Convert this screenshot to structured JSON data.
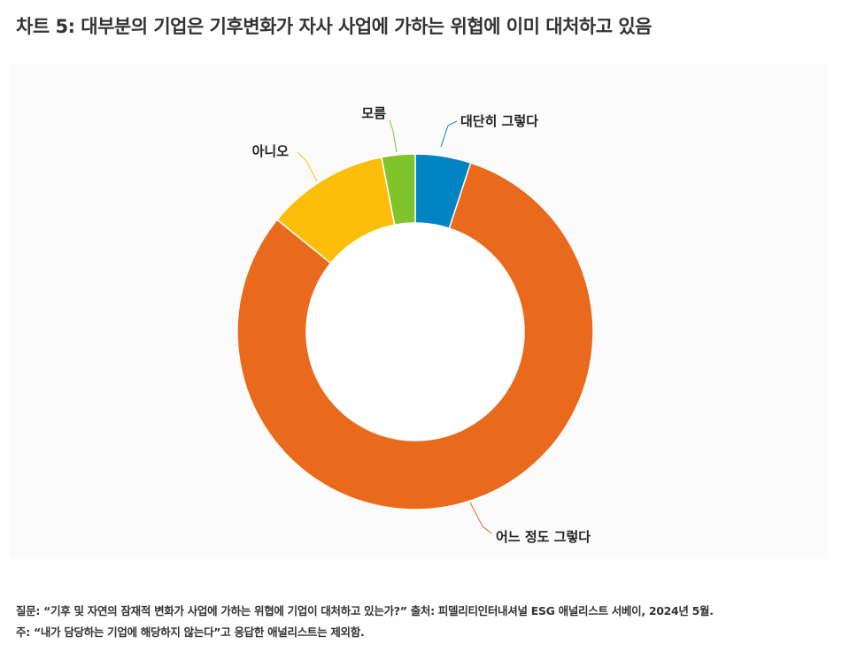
{
  "title": "차트 5: 대부분의 기업은 기후변화가 자사 사업에 가하는 위협에 이미 대처하고 있음",
  "chart_data": {
    "type": "pie",
    "donut": true,
    "title": "",
    "slices": [
      {
        "label": "대단히 그렇다",
        "value": 5,
        "color": "#0084c4"
      },
      {
        "label": "어느 정도 그렇다",
        "value": 80,
        "color": "#e96a1c"
      },
      {
        "label": "아니오",
        "value": 11,
        "color": "#fbbf0a"
      },
      {
        "label": "모름",
        "value": 3,
        "color": "#7fc42a"
      }
    ]
  },
  "footnotes": {
    "question": "질문: “기후 및 자연의 잠재적 변화가 사업에 가하는 위협에 기업이 대처하고 있는가?” 출처: 피델리티인터내셔널 ESG 애널리스트 서베이, 2024년 5월.",
    "note": "주: “내가 담당하는 기업에 해당하지 않는다”고 응답한 애널리스트는 제외함."
  }
}
